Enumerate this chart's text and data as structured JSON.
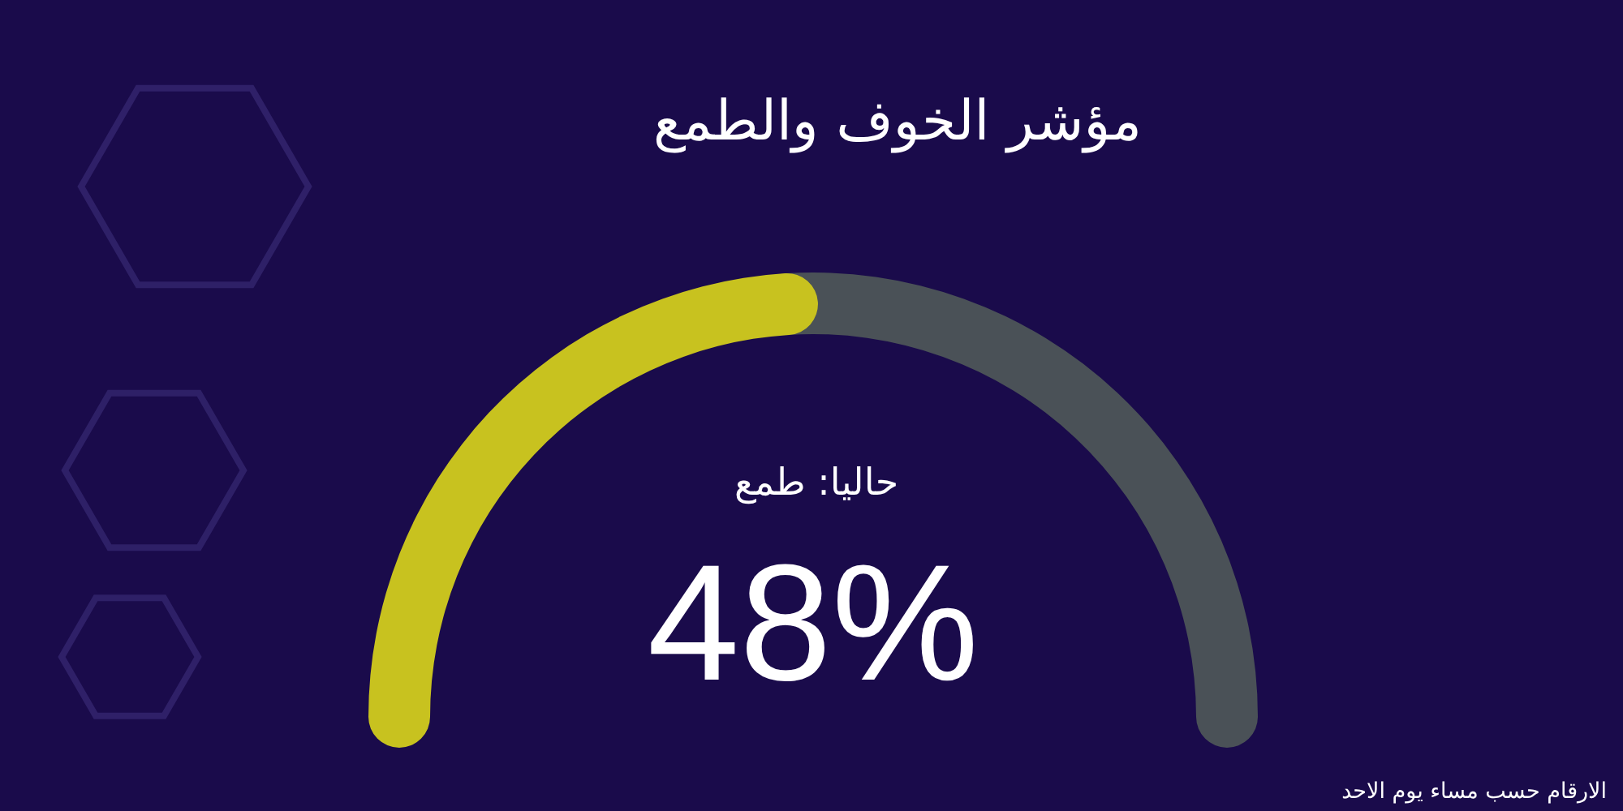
{
  "chart_data": {
    "type": "donut",
    "title": "مؤشر الخوف والطمع",
    "categories": [
      null,
      null
    ],
    "values": [
      48,
      52
    ],
    "colors": [
      "#c8c21f",
      "#4a5157"
    ],
    "value_labels": [
      "48%",
      null
    ],
    "annotations": [
      "حاليا: طمع",
      "الارقام حسب مساء يوم الاحد"
    ]
  }
}
